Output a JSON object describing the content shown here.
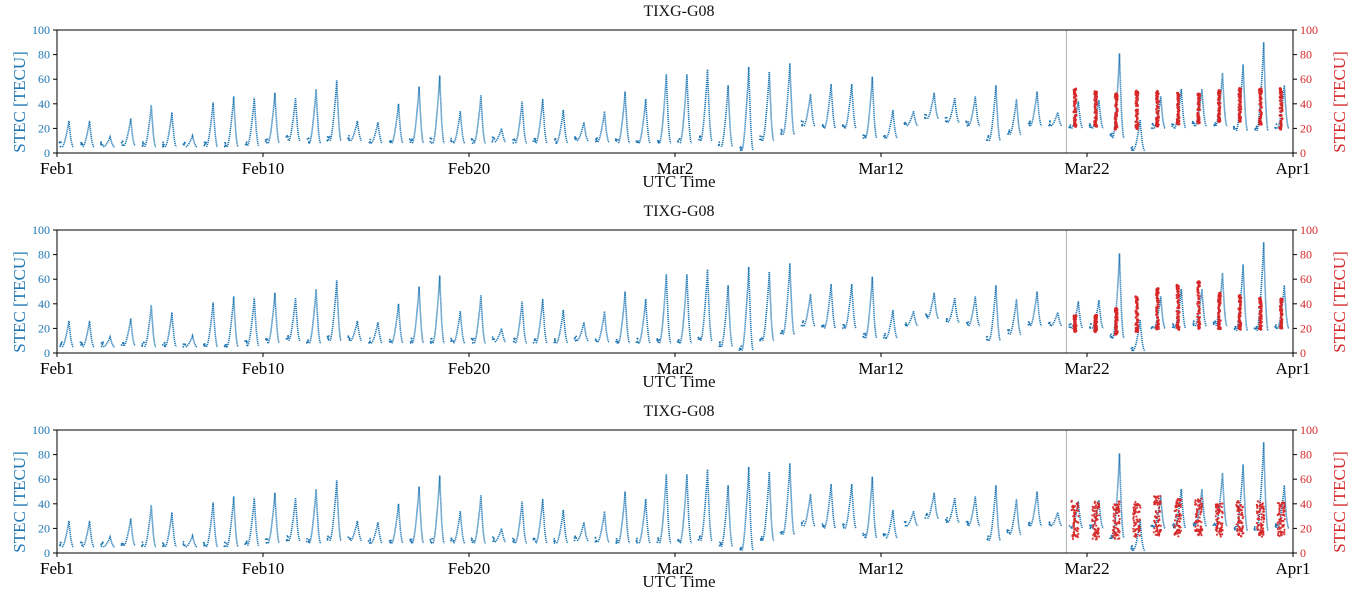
{
  "chart_data": [
    {
      "type": "scatter",
      "title": "TIXG-G08",
      "xlabel": "UTC Time",
      "ylabel_left": "STEC [TECU]",
      "ylabel_right": "STEC [TECU]",
      "x_ticks": [
        "Feb1",
        "Feb10",
        "Feb20",
        "Mar2",
        "Mar12",
        "Mar22",
        "Apr1"
      ],
      "x_range_days": [
        0,
        60
      ],
      "ylim": [
        0,
        100
      ],
      "y_ticks": [
        0,
        20,
        40,
        60,
        80,
        100
      ],
      "vline_day": 49,
      "grid": false,
      "colors": {
        "observed": "#1f77b4",
        "predicted": "#d62728",
        "vline": "#b0b0b0"
      },
      "predicted_style": "tight"
    },
    {
      "type": "scatter",
      "title": "TIXG-G08",
      "xlabel": "UTC Time",
      "ylabel_left": "STEC [TECU]",
      "ylabel_right": "STEC [TECU]",
      "x_ticks": [
        "Feb1",
        "Feb10",
        "Feb20",
        "Mar2",
        "Mar12",
        "Mar22",
        "Apr1"
      ],
      "x_range_days": [
        0,
        60
      ],
      "ylim": [
        0,
        100
      ],
      "y_ticks": [
        0,
        20,
        40,
        60,
        80,
        100
      ],
      "vline_day": 49,
      "grid": false,
      "colors": {
        "observed": "#1f77b4",
        "predicted": "#d62728",
        "vline": "#b0b0b0"
      },
      "predicted_style": "tight"
    },
    {
      "type": "scatter",
      "title": "TIXG-G08",
      "xlabel": "UTC Time",
      "ylabel_left": "STEC [TECU]",
      "ylabel_right": "STEC [TECU]",
      "x_ticks": [
        "Feb1",
        "Feb10",
        "Feb20",
        "Mar2",
        "Mar12",
        "Mar22",
        "Apr1"
      ],
      "x_range_days": [
        0,
        60
      ],
      "ylim": [
        0,
        100
      ],
      "y_ticks": [
        0,
        20,
        40,
        60,
        80,
        100
      ],
      "vline_day": 49,
      "grid": false,
      "colors": {
        "observed": "#1f77b4",
        "predicted": "#d62728",
        "vline": "#b0b0b0"
      },
      "predicted_style": "scattered"
    }
  ],
  "daily_observed": {
    "day": [
      0,
      1,
      2,
      3,
      4,
      5,
      6,
      7,
      8,
      9,
      10,
      11,
      12,
      13,
      14,
      15,
      16,
      17,
      18,
      19,
      20,
      21,
      22,
      23,
      24,
      25,
      26,
      27,
      28,
      29,
      30,
      31,
      32,
      33,
      34,
      35,
      36,
      37,
      38,
      39,
      40,
      41,
      42,
      43,
      44,
      45,
      46,
      47,
      48,
      49,
      50,
      51,
      52,
      53,
      54,
      55,
      56,
      57,
      58,
      59
    ],
    "min": [
      5,
      5,
      5,
      6,
      5,
      5,
      5,
      5,
      5,
      6,
      8,
      10,
      8,
      10,
      10,
      8,
      8,
      8,
      8,
      8,
      8,
      9,
      8,
      8,
      8,
      10,
      9,
      8,
      8,
      8,
      8,
      10,
      5,
      2,
      10,
      15,
      22,
      20,
      20,
      12,
      12,
      22,
      28,
      25,
      22,
      10,
      15,
      22,
      22,
      20,
      20,
      12,
      2,
      20,
      20,
      22,
      22,
      18,
      18,
      20
    ],
    "max": [
      26,
      26,
      13,
      28,
      39,
      33,
      14,
      41,
      46,
      45,
      49,
      45,
      52,
      59,
      26,
      25,
      40,
      54,
      63,
      34,
      47,
      20,
      42,
      44,
      35,
      25,
      34,
      50,
      44,
      64,
      64,
      68,
      55,
      70,
      66,
      73,
      48,
      56,
      56,
      62,
      35,
      34,
      49,
      45,
      46,
      55,
      44,
      50,
      33,
      42,
      43,
      81,
      27,
      46,
      52,
      52,
      65,
      72,
      90,
      55
    ]
  },
  "daily_predicted": {
    "day": [
      49,
      50,
      51,
      52,
      53,
      54,
      55,
      56,
      57,
      58,
      59
    ],
    "panel1_min": [
      22,
      22,
      20,
      20,
      22,
      24,
      25,
      26,
      26,
      24,
      20
    ],
    "panel1_max": [
      52,
      50,
      48,
      50,
      50,
      48,
      48,
      50,
      52,
      52,
      52
    ],
    "panel2_min": [
      18,
      18,
      16,
      18,
      20,
      20,
      20,
      20,
      20,
      20,
      20
    ],
    "panel2_max": [
      30,
      30,
      36,
      45,
      52,
      55,
      58,
      48,
      46,
      44,
      44
    ],
    "panel3_min": [
      14,
      14,
      14,
      16,
      16,
      16,
      16,
      16,
      16,
      16,
      16
    ],
    "panel3_max": [
      40,
      40,
      40,
      40,
      44,
      42,
      42,
      40,
      40,
      40,
      40
    ]
  }
}
